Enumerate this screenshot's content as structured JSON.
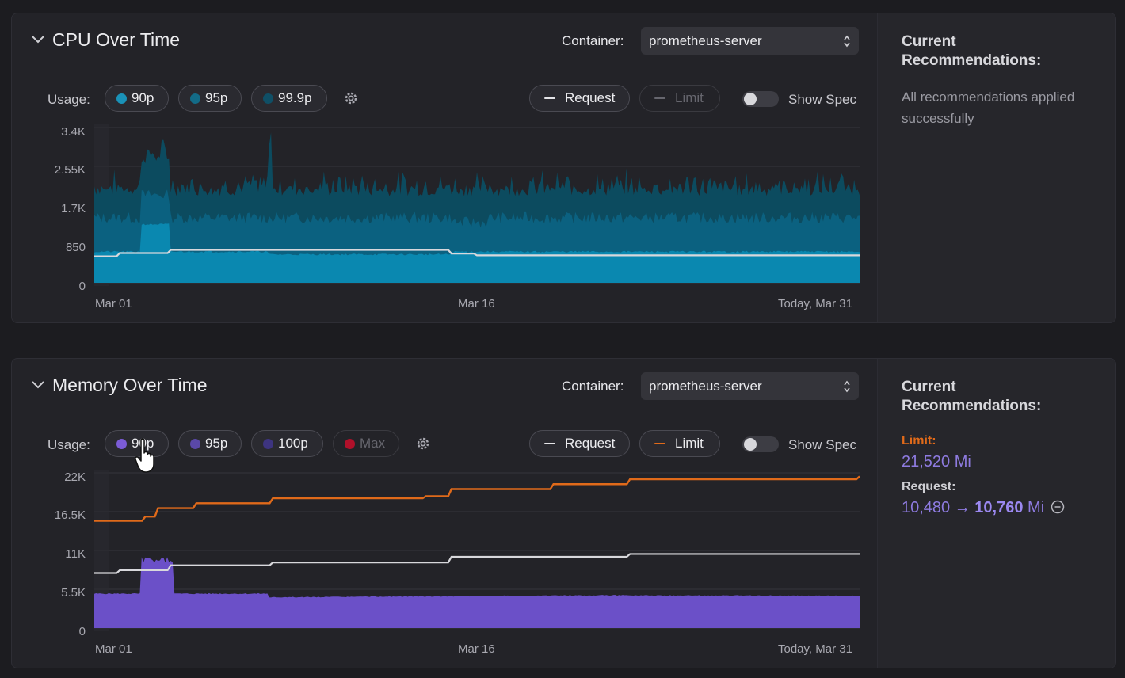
{
  "cpu": {
    "title": "CPU Over Time",
    "container_label": "Container:",
    "container_value": "prometheus-server",
    "usage_label": "Usage:",
    "pills": [
      {
        "label": "90p",
        "color": "#1a92b8"
      },
      {
        "label": "95p",
        "color": "#136b87"
      },
      {
        "label": "99.9p",
        "color": "#0f4f66"
      }
    ],
    "request_label": "Request",
    "limit_label": "Limit",
    "show_spec_label": "Show Spec",
    "recommendations_title": "Current Recommendations:",
    "recommendations_text": "All recommendations applied successfully",
    "chart_data": {
      "type": "area",
      "x": [
        "Mar 01",
        "Mar 16",
        "Today, Mar 31"
      ],
      "yticks": [
        "3.4K",
        "2.55K",
        "1.7K",
        "850",
        "0"
      ],
      "ylim": [
        0,
        3400
      ],
      "series": [
        {
          "name": "90p",
          "color": "#0a86ad"
        },
        {
          "name": "95p",
          "color": "#0b5d77"
        },
        {
          "name": "99.9p",
          "color": "#0d4a5e"
        },
        {
          "name": "Request",
          "color": "#d8d8dc"
        }
      ],
      "request_steps": [
        [
          0,
          580
        ],
        [
          1,
          650
        ],
        [
          3,
          720
        ],
        [
          14,
          640
        ],
        [
          15,
          600
        ],
        [
          30,
          600
        ]
      ],
      "p90_level": 660,
      "p95_level": 1300,
      "p999_level": 1900
    }
  },
  "memory": {
    "title": "Memory Over Time",
    "container_label": "Container:",
    "container_value": "prometheus-server",
    "usage_label": "Usage:",
    "pills": [
      {
        "label": "90p",
        "color": "#7b5cd6"
      },
      {
        "label": "95p",
        "color": "#5a48a8"
      },
      {
        "label": "100p",
        "color": "#3d3480"
      },
      {
        "label": "Max",
        "color": "#b0102a"
      }
    ],
    "request_label": "Request",
    "limit_label": "Limit",
    "show_spec_label": "Show Spec",
    "recommendations_title": "Current Recommendations:",
    "limit_rec_label": "Limit:",
    "limit_rec_value": "21,520 Mi",
    "request_rec_label": "Request:",
    "request_rec_from": "10,480",
    "request_rec_arrow": "→",
    "request_rec_to": "10,760",
    "request_rec_unit": "Mi",
    "chart_data": {
      "type": "area",
      "x": [
        "Mar 01",
        "Mar 16",
        "Today, Mar 31"
      ],
      "yticks": [
        "22K",
        "16.5K",
        "11K",
        "5.5K",
        "0"
      ],
      "ylim": [
        0,
        22000
      ],
      "series": [
        {
          "name": "90p",
          "color": "#6a4fc4"
        },
        {
          "name": "Request",
          "color": "#d8d8dc"
        },
        {
          "name": "Limit",
          "color": "#e06a1a"
        }
      ],
      "limit_steps": [
        [
          0,
          15200
        ],
        [
          2,
          15800
        ],
        [
          2.5,
          17000
        ],
        [
          4,
          17700
        ],
        [
          7,
          18400
        ],
        [
          13,
          18700
        ],
        [
          14,
          19700
        ],
        [
          18,
          20400
        ],
        [
          21,
          21100
        ],
        [
          30,
          21500
        ]
      ],
      "request_steps": [
        [
          0,
          7800
        ],
        [
          1,
          8200
        ],
        [
          3,
          8900
        ],
        [
          7,
          9300
        ],
        [
          14,
          10100
        ],
        [
          21,
          10500
        ],
        [
          30,
          10500
        ]
      ],
      "p90_base": 4800,
      "p90_spike": 10000
    }
  }
}
